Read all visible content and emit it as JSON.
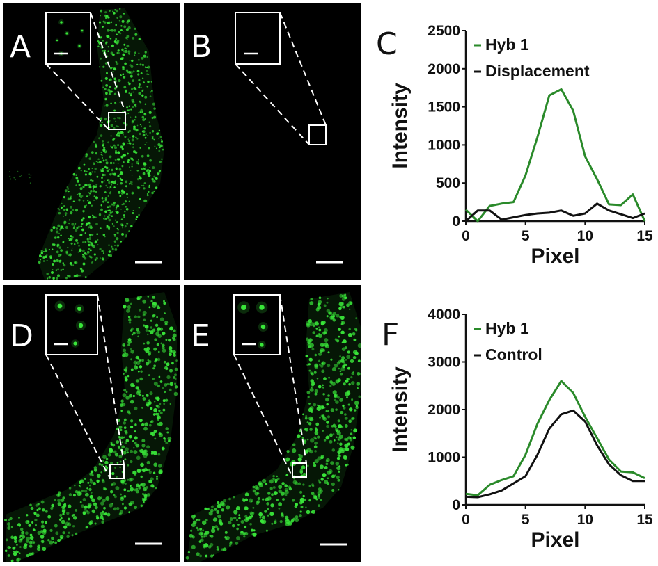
{
  "panels": [
    {
      "letter": "A",
      "id": "A"
    },
    {
      "letter": "B",
      "id": "B"
    },
    {
      "letter": "D",
      "id": "D"
    },
    {
      "letter": "E",
      "id": "E"
    }
  ],
  "panel_C_letter": "C",
  "panel_F_letter": "F",
  "colors": {
    "hyb": "#2a8a2a",
    "black": "#111111",
    "spot": "#39e639"
  },
  "chart_data": [
    {
      "panel": "C",
      "type": "line",
      "xlabel": "Pixel",
      "ylabel": "Intensity",
      "xlim": [
        0,
        15
      ],
      "ylim": [
        0,
        2500
      ],
      "xticks": [
        0,
        5,
        10,
        15
      ],
      "yticks": [
        0,
        500,
        1000,
        1500,
        2000,
        2500
      ],
      "legend_position": "top-left",
      "series": [
        {
          "name": "Hyb 1",
          "color": "#2a8a2a",
          "x": [
            0,
            1,
            2,
            3,
            4,
            5,
            6,
            7,
            8,
            9,
            10,
            11,
            12,
            13,
            14,
            15
          ],
          "y": [
            150,
            0,
            200,
            230,
            250,
            600,
            1100,
            1650,
            1730,
            1450,
            850,
            550,
            220,
            210,
            350,
            0
          ]
        },
        {
          "name": "Displacement",
          "color": "#111111",
          "x": [
            0,
            1,
            2,
            3,
            4,
            5,
            6,
            7,
            8,
            9,
            10,
            11,
            12,
            13,
            14,
            15
          ],
          "y": [
            0,
            140,
            140,
            20,
            50,
            80,
            100,
            110,
            140,
            70,
            100,
            230,
            140,
            90,
            40,
            100
          ]
        }
      ]
    },
    {
      "panel": "F",
      "type": "line",
      "xlabel": "Pixel",
      "ylabel": "Intensity",
      "xlim": [
        0,
        15
      ],
      "ylim": [
        0,
        4000
      ],
      "xticks": [
        0,
        5,
        10,
        15
      ],
      "yticks": [
        0,
        1000,
        2000,
        3000,
        4000
      ],
      "legend_position": "top-left",
      "series": [
        {
          "name": "Hyb 1",
          "color": "#2a8a2a",
          "x": [
            0,
            1,
            2,
            3,
            4,
            5,
            6,
            7,
            8,
            9,
            10,
            11,
            12,
            13,
            14,
            15
          ],
          "y": [
            230,
            200,
            420,
            520,
            600,
            1050,
            1700,
            2200,
            2600,
            2350,
            1850,
            1400,
            950,
            700,
            680,
            560
          ]
        },
        {
          "name": "Control",
          "color": "#111111",
          "x": [
            0,
            1,
            2,
            3,
            4,
            5,
            6,
            7,
            8,
            9,
            10,
            11,
            12,
            13,
            14,
            15
          ],
          "y": [
            170,
            160,
            220,
            300,
            450,
            600,
            1050,
            1600,
            1900,
            1980,
            1750,
            1250,
            850,
            620,
            500,
            500
          ]
        }
      ]
    }
  ]
}
